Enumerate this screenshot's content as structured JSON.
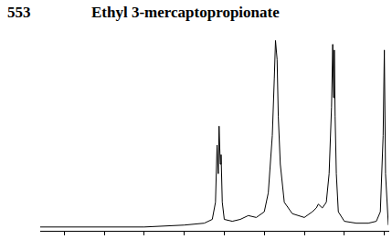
{
  "chart_data": {
    "type": "line",
    "title": "Ethyl 3-mercaptopropionate",
    "subtitle": "553",
    "x": [
      8.6,
      6.0,
      5.0,
      4.5,
      4.3,
      4.22,
      4.18,
      4.15,
      4.13,
      4.1,
      4.08,
      4.05,
      4.0,
      3.8,
      3.6,
      3.4,
      3.2,
      3.0,
      2.9,
      2.8,
      2.75,
      2.72,
      2.68,
      2.65,
      2.6,
      2.5,
      2.3,
      2.0,
      1.8,
      1.7,
      1.65,
      1.55,
      1.45,
      1.38,
      1.32,
      1.29,
      1.27,
      1.25,
      1.23,
      1.2,
      1.15,
      1.0,
      0.7,
      0.4,
      0.2,
      0.1,
      0.03,
      0.0,
      -0.03,
      -0.1
    ],
    "values": [
      0.02,
      0.02,
      0.03,
      0.04,
      0.06,
      0.15,
      0.45,
      0.3,
      0.55,
      0.35,
      0.4,
      0.15,
      0.06,
      0.05,
      0.06,
      0.08,
      0.07,
      0.1,
      0.2,
      0.5,
      0.8,
      1.0,
      0.9,
      0.6,
      0.35,
      0.15,
      0.09,
      0.07,
      0.1,
      0.12,
      0.14,
      0.12,
      0.15,
      0.3,
      0.65,
      0.98,
      0.7,
      0.95,
      0.6,
      0.3,
      0.1,
      0.05,
      0.04,
      0.04,
      0.05,
      0.1,
      0.5,
      0.95,
      0.3,
      0.03
    ],
    "color": "#000000",
    "xlim": [
      8.6,
      -0.1
    ],
    "xticks": [
      8,
      7,
      6,
      5,
      4,
      3,
      2,
      1,
      0
    ],
    "ylim": [
      0,
      1.05
    ],
    "grid": false,
    "tick_labels": false
  }
}
